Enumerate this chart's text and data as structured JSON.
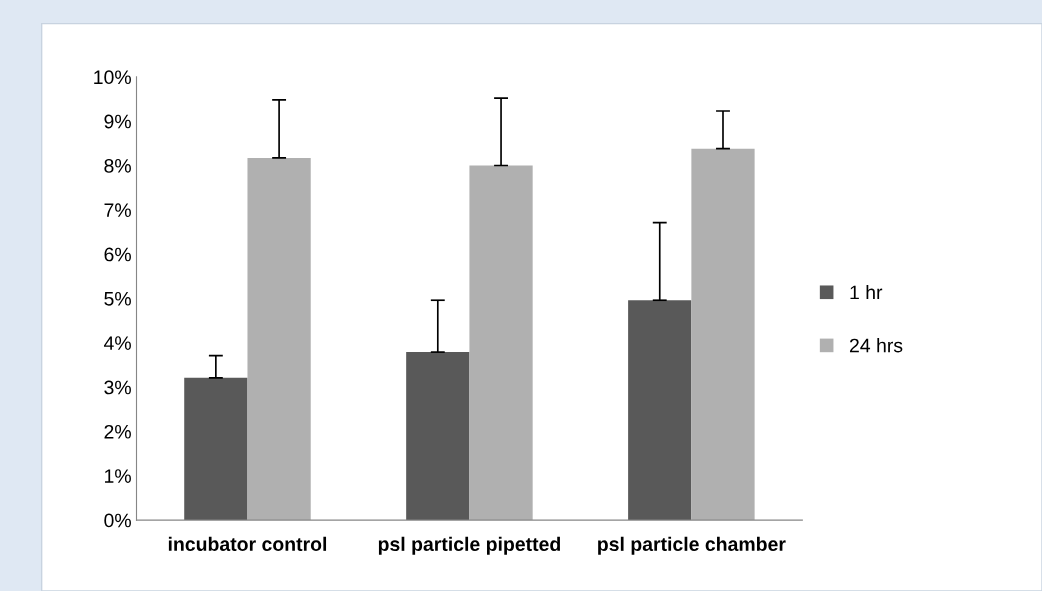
{
  "chart_data": {
    "type": "bar",
    "categories": [
      "incubator control",
      "psl particle pipetted",
      "psl particle chamber"
    ],
    "series": [
      {
        "name": "1 hr",
        "color": "#595959",
        "values": [
          3.21,
          3.79,
          4.96
        ],
        "errors": [
          [
            3.21,
            3.71
          ],
          [
            3.79,
            4.96
          ],
          [
            4.96,
            6.71
          ]
        ]
      },
      {
        "name": "24 hrs",
        "color": "#b0b0b0",
        "values": [
          8.17,
          8.0,
          8.38
        ],
        "errors": [
          [
            8.17,
            9.48
          ],
          [
            8.0,
            9.52
          ],
          [
            8.38,
            9.23
          ]
        ]
      }
    ],
    "ylim": [
      0,
      10
    ],
    "yticks": [
      {
        "value": 0,
        "label": "0%"
      },
      {
        "value": 1,
        "label": "1%"
      },
      {
        "value": 2,
        "label": "2%"
      },
      {
        "value": 3,
        "label": "3%"
      },
      {
        "value": 4,
        "label": "4%"
      },
      {
        "value": 5,
        "label": "5%"
      },
      {
        "value": 6,
        "label": "6%"
      },
      {
        "value": 7,
        "label": "7%"
      },
      {
        "value": 8,
        "label": "8%"
      },
      {
        "value": 9,
        "label": "9%"
      },
      {
        "value": 10,
        "label": "10%"
      }
    ],
    "grid": false,
    "legend": "right"
  }
}
